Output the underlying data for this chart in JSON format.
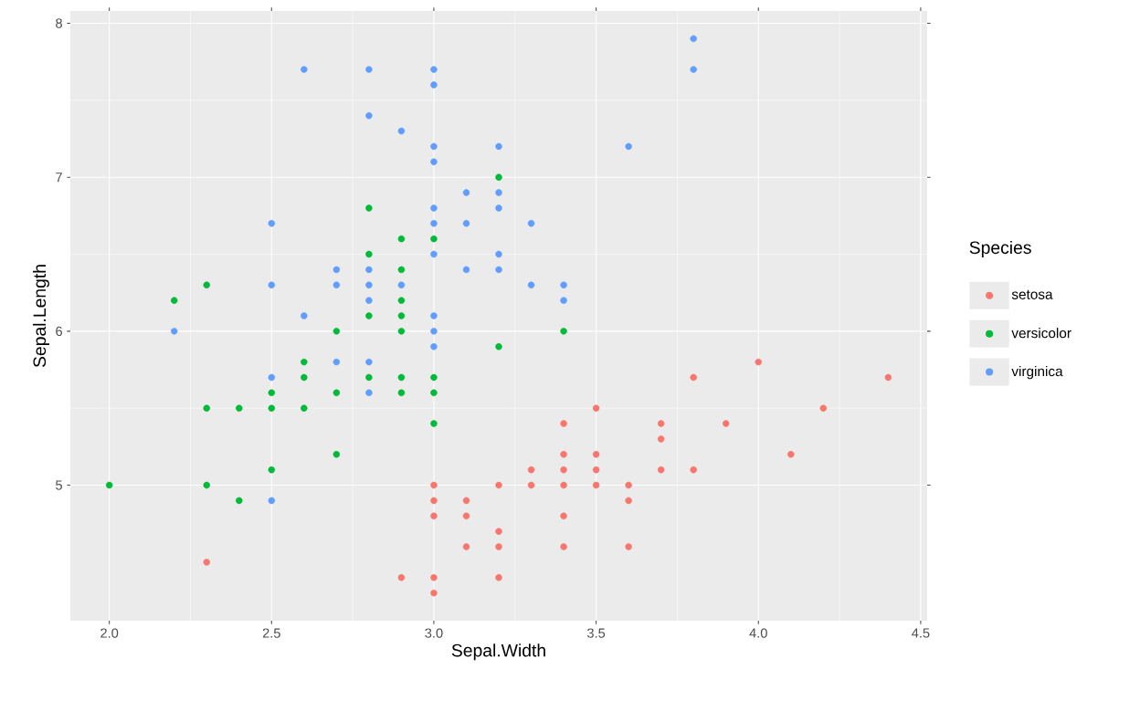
{
  "chart_data": {
    "type": "scatter",
    "xlabel": "Sepal.Width",
    "ylabel": "Sepal.Length",
    "legend_title": "Species",
    "legend": "right",
    "grid": true,
    "marker": "circle",
    "xlim": [
      1.88,
      4.52
    ],
    "ylim": [
      4.12,
      8.08
    ],
    "xticks": [
      {
        "value": 2.0,
        "label": "2.0"
      },
      {
        "value": 2.5,
        "label": "2.5"
      },
      {
        "value": 3.0,
        "label": "3.0"
      },
      {
        "value": 3.5,
        "label": "3.5"
      },
      {
        "value": 4.0,
        "label": "4.0"
      },
      {
        "value": 4.5,
        "label": "4.5"
      }
    ],
    "yticks": [
      5,
      6,
      7,
      8
    ],
    "series": [
      {
        "name": "setosa",
        "color": "#f8766d",
        "x": [
          3.5,
          3.0,
          3.2,
          3.1,
          3.6,
          3.9,
          3.4,
          3.4,
          2.9,
          3.1,
          3.7,
          3.4,
          3.0,
          3.0,
          4.0,
          4.4,
          3.8,
          3.8,
          3.4,
          3.7,
          3.6,
          3.3,
          3.0,
          3.5,
          3.4,
          3.1,
          4.1,
          4.2,
          3.2,
          3.5,
          3.6,
          3.0,
          3.4,
          3.5,
          2.3,
          3.2,
          3.2,
          3.7,
          3.3
        ],
        "values": [
          5.1,
          4.9,
          4.7,
          4.6,
          5.0,
          5.4,
          4.6,
          5.0,
          4.4,
          4.9,
          5.4,
          4.8,
          4.8,
          4.3,
          5.8,
          5.7,
          5.7,
          5.1,
          5.4,
          5.1,
          4.6,
          5.1,
          5.0,
          5.2,
          5.2,
          4.8,
          5.2,
          5.5,
          5.0,
          5.5,
          4.9,
          4.4,
          5.1,
          5.0,
          4.5,
          4.4,
          4.6,
          5.3,
          5.0
        ]
      },
      {
        "name": "versicolor",
        "color": "#00ba38",
        "x": [
          3.2,
          2.3,
          2.8,
          2.8,
          2.4,
          2.9,
          2.7,
          2.0,
          2.9,
          2.9,
          3.0,
          2.2,
          2.5,
          3.2,
          2.8,
          2.9,
          3.0,
          2.8,
          2.9,
          2.6,
          2.4,
          2.7,
          3.0,
          3.4,
          2.3,
          2.5,
          2.6,
          2.6,
          2.3,
          2.7,
          3.0,
          2.9,
          2.9,
          2.5
        ],
        "values": [
          7.0,
          5.5,
          6.5,
          5.7,
          4.9,
          6.6,
          5.2,
          5.0,
          6.1,
          5.6,
          5.6,
          6.2,
          5.6,
          5.9,
          6.1,
          6.4,
          6.6,
          6.8,
          6.0,
          5.7,
          5.5,
          6.0,
          5.4,
          6.0,
          6.3,
          5.5,
          5.5,
          5.8,
          5.0,
          5.6,
          5.7,
          5.7,
          6.2,
          5.1
        ]
      },
      {
        "name": "virginica",
        "color": "#619cff",
        "x": [
          3.3,
          2.7,
          3.0,
          2.9,
          3.0,
          3.0,
          2.5,
          2.9,
          2.5,
          3.6,
          3.2,
          2.7,
          3.0,
          2.5,
          2.8,
          3.2,
          3.8,
          2.6,
          2.2,
          3.2,
          2.8,
          2.8,
          2.7,
          3.3,
          3.2,
          2.8,
          3.0,
          2.8,
          3.0,
          2.8,
          3.8,
          2.8,
          2.6,
          3.0,
          3.4,
          3.1,
          3.0,
          3.1,
          3.1,
          3.2,
          3.0,
          2.5,
          3.4,
          3.0
        ],
        "values": [
          6.3,
          5.8,
          7.1,
          6.3,
          6.5,
          7.6,
          4.9,
          7.3,
          6.7,
          7.2,
          6.5,
          6.4,
          6.8,
          5.7,
          5.8,
          6.4,
          7.7,
          7.7,
          6.0,
          6.9,
          5.6,
          7.7,
          6.3,
          6.7,
          7.2,
          6.2,
          6.1,
          6.4,
          7.2,
          7.4,
          7.9,
          6.3,
          6.1,
          7.7,
          6.3,
          6.4,
          6.0,
          6.9,
          6.7,
          6.8,
          6.7,
          6.3,
          6.2,
          5.9
        ]
      }
    ]
  }
}
